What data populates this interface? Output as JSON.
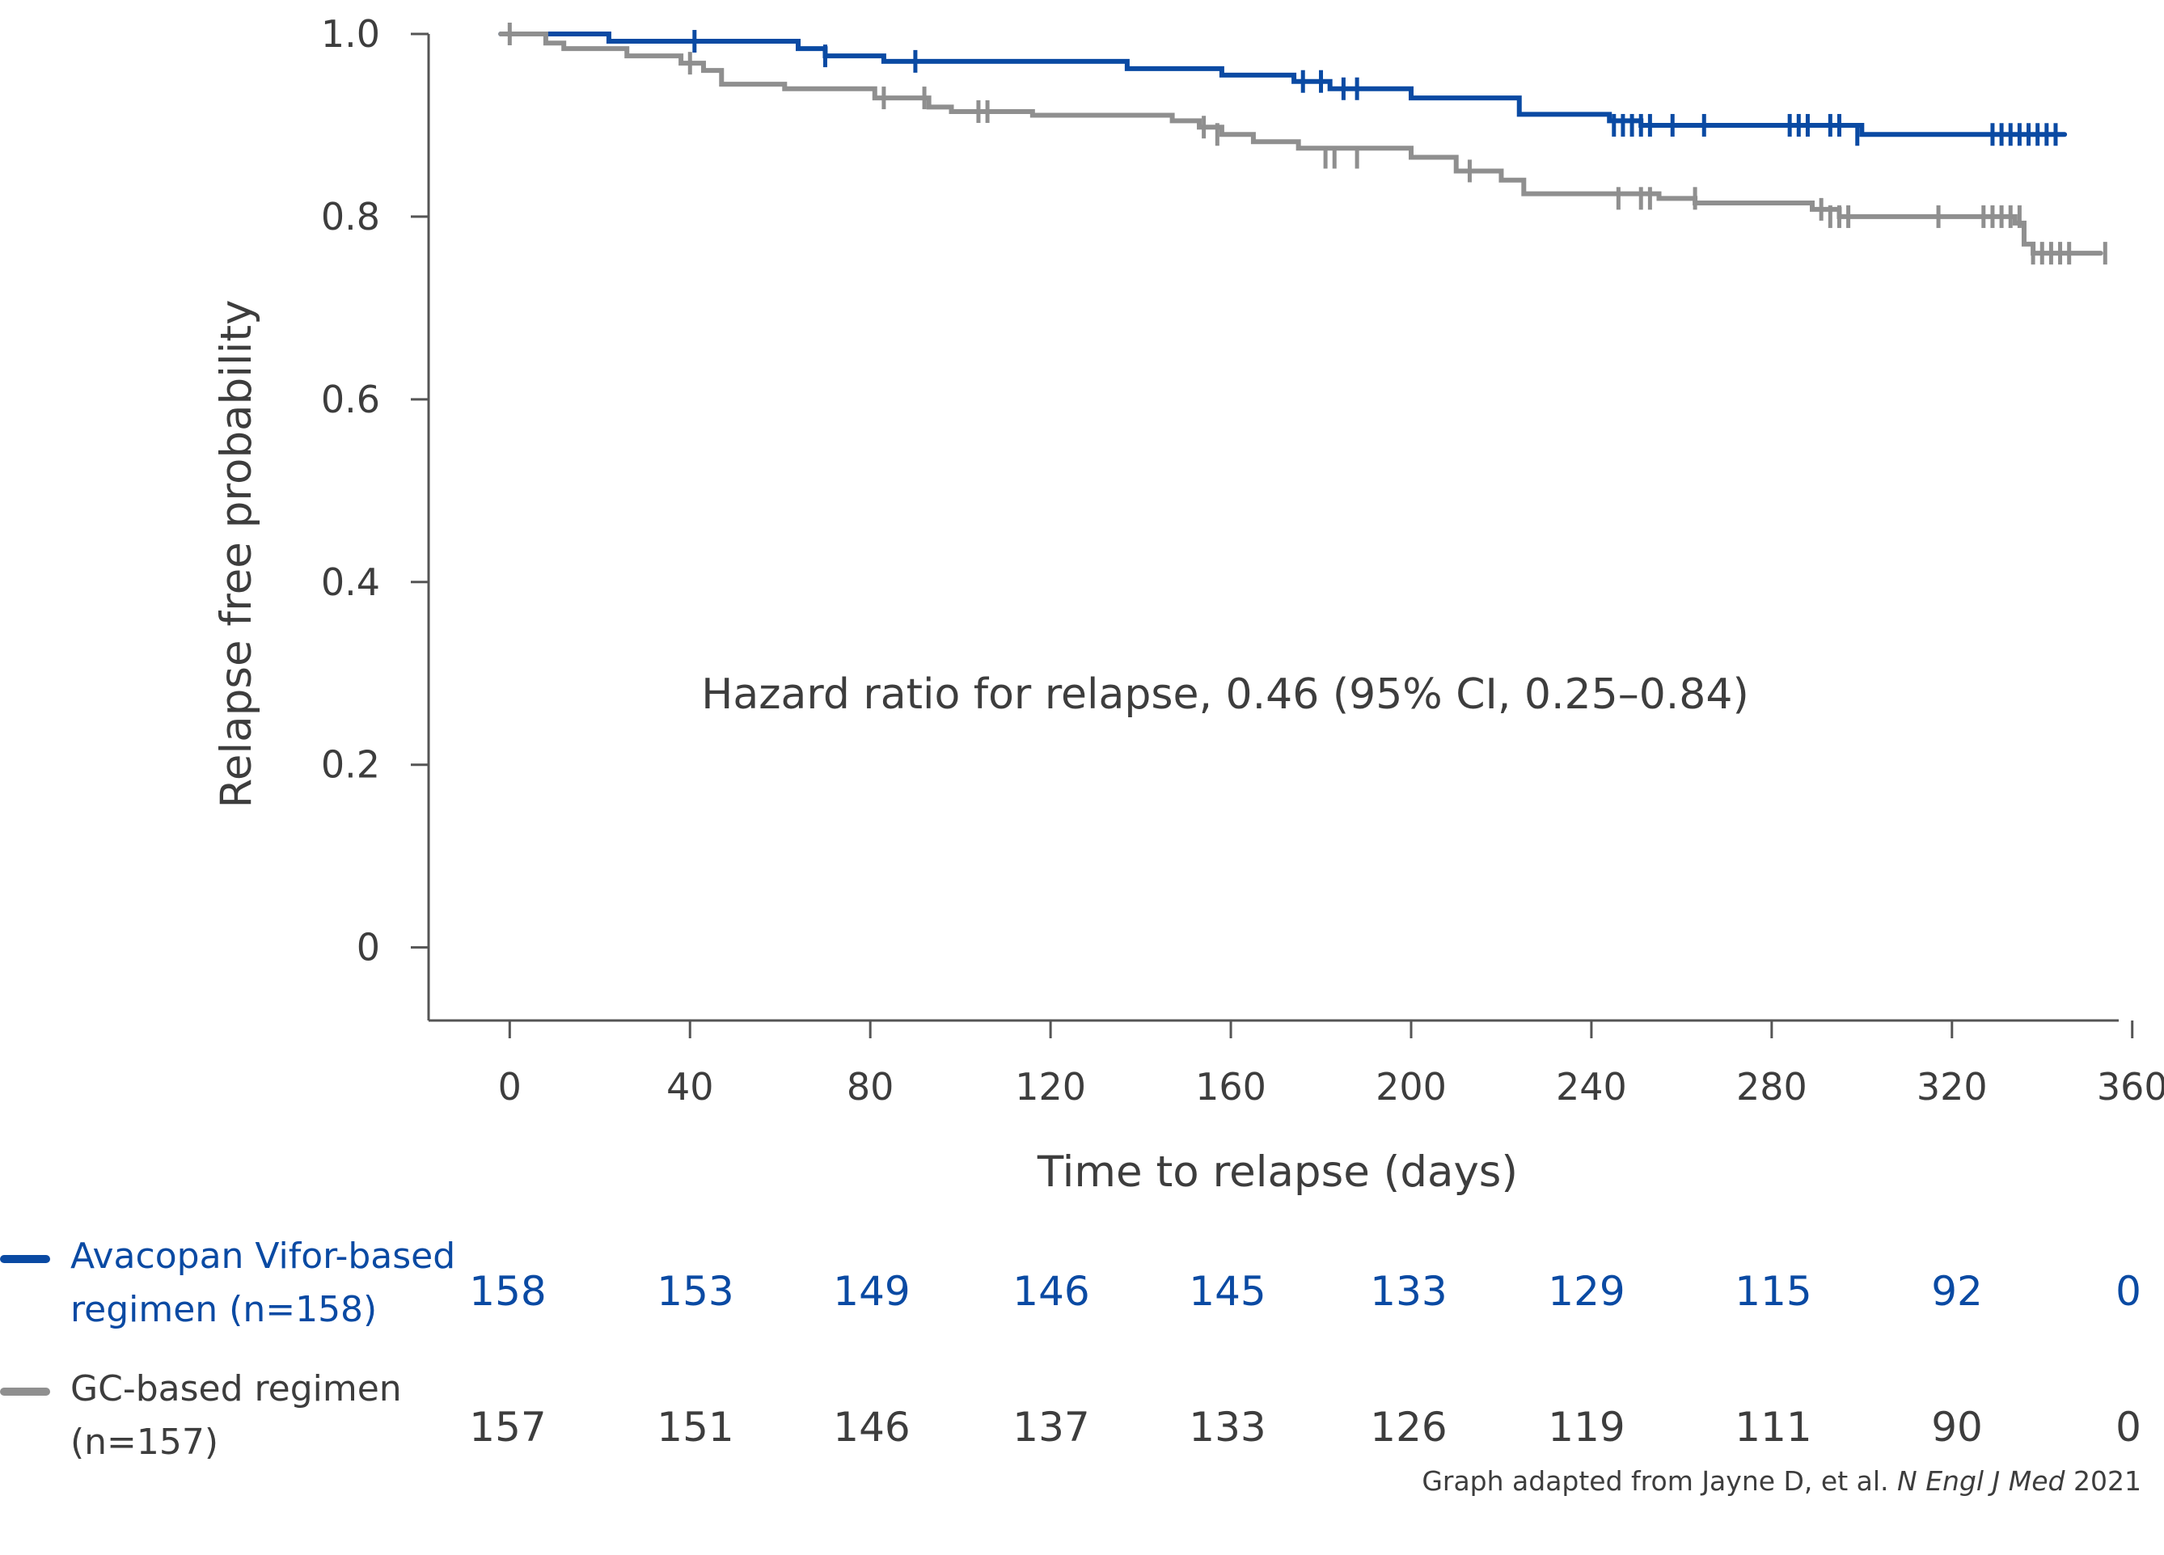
{
  "colors": {
    "avacopan": "#0a4aa3",
    "gc": "#8f8f8f",
    "axis": "#555555",
    "text": "#3d3d3d"
  },
  "chart_data": {
    "type": "line",
    "subtype": "kaplan-meier step",
    "xlabel": "Time to relapse (days)",
    "ylabel": "Relapse free probability",
    "xlim": [
      -18,
      357
    ],
    "ylim": [
      -0.08,
      1.0
    ],
    "x_ticks": [
      0,
      40,
      80,
      120,
      160,
      200,
      240,
      280,
      320,
      360
    ],
    "y_ticks": [
      0,
      0.2,
      0.4,
      0.6,
      0.8,
      1.0
    ],
    "y_tick_labels": [
      "0",
      "0.2",
      "0.4",
      "0.6",
      "0.8",
      "1.0"
    ],
    "annotation": "Hazard ratio for relapse, 0.46 (95% CI, 0.25–0.84)",
    "series": [
      {
        "name": "Avacopan Vifor-based regimen (n=158)",
        "color_key": "avacopan",
        "steps": [
          [
            -2,
            1.0
          ],
          [
            22,
            0.992
          ],
          [
            64,
            0.984
          ],
          [
            70,
            0.976
          ],
          [
            83,
            0.97
          ],
          [
            137,
            0.962
          ],
          [
            158,
            0.955
          ],
          [
            174,
            0.948
          ],
          [
            182,
            0.94
          ],
          [
            200,
            0.93
          ],
          [
            224,
            0.912
          ],
          [
            244,
            0.905
          ],
          [
            251,
            0.9
          ],
          [
            300,
            0.89
          ],
          [
            345,
            0.89
          ]
        ],
        "censored": [
          [
            41,
            0.992
          ],
          [
            70,
            0.976
          ],
          [
            90,
            0.97
          ],
          [
            176,
            0.948
          ],
          [
            180,
            0.948
          ],
          [
            185,
            0.94
          ],
          [
            188,
            0.94
          ],
          [
            245,
            0.9
          ],
          [
            247,
            0.9
          ],
          [
            249,
            0.9
          ],
          [
            251,
            0.9
          ],
          [
            253,
            0.9
          ],
          [
            258,
            0.9
          ],
          [
            265,
            0.9
          ],
          [
            284,
            0.9
          ],
          [
            286,
            0.9
          ],
          [
            288,
            0.9
          ],
          [
            293,
            0.9
          ],
          [
            295,
            0.9
          ],
          [
            299,
            0.89
          ],
          [
            329,
            0.89
          ],
          [
            331,
            0.89
          ],
          [
            333,
            0.89
          ],
          [
            335,
            0.89
          ],
          [
            337,
            0.89
          ],
          [
            339,
            0.89
          ],
          [
            341,
            0.89
          ],
          [
            343,
            0.89
          ]
        ]
      },
      {
        "name": "GC-based regimen (n=157)",
        "color_key": "gc",
        "steps": [
          [
            -2,
            1.0
          ],
          [
            8,
            0.99
          ],
          [
            12,
            0.984
          ],
          [
            26,
            0.976
          ],
          [
            38,
            0.968
          ],
          [
            43,
            0.96
          ],
          [
            47,
            0.945
          ],
          [
            61,
            0.94
          ],
          [
            81,
            0.93
          ],
          [
            93,
            0.92
          ],
          [
            98,
            0.915
          ],
          [
            116,
            0.911
          ],
          [
            147,
            0.905
          ],
          [
            153,
            0.898
          ],
          [
            158,
            0.89
          ],
          [
            165,
            0.882
          ],
          [
            175,
            0.875
          ],
          [
            200,
            0.865
          ],
          [
            210,
            0.85
          ],
          [
            220,
            0.84
          ],
          [
            225,
            0.825
          ],
          [
            255,
            0.82
          ],
          [
            263,
            0.815
          ],
          [
            289,
            0.808
          ],
          [
            295,
            0.8
          ],
          [
            334,
            0.793
          ],
          [
            336,
            0.77
          ],
          [
            338,
            0.76
          ],
          [
            353,
            0.76
          ]
        ],
        "censored": [
          [
            0,
            1.0
          ],
          [
            40,
            0.968
          ],
          [
            83,
            0.93
          ],
          [
            92,
            0.93
          ],
          [
            104,
            0.915
          ],
          [
            106,
            0.915
          ],
          [
            154,
            0.898
          ],
          [
            157,
            0.89
          ],
          [
            181,
            0.865
          ],
          [
            183,
            0.865
          ],
          [
            188,
            0.865
          ],
          [
            213,
            0.85
          ],
          [
            246,
            0.82
          ],
          [
            251,
            0.82
          ],
          [
            253,
            0.82
          ],
          [
            263,
            0.82
          ],
          [
            291,
            0.808
          ],
          [
            293,
            0.8
          ],
          [
            295,
            0.8
          ],
          [
            297,
            0.8
          ],
          [
            317,
            0.8
          ],
          [
            327,
            0.8
          ],
          [
            329,
            0.8
          ],
          [
            331,
            0.8
          ],
          [
            333,
            0.8
          ],
          [
            335,
            0.8
          ],
          [
            338,
            0.76
          ],
          [
            340,
            0.76
          ],
          [
            342,
            0.76
          ],
          [
            344,
            0.76
          ],
          [
            346,
            0.76
          ],
          [
            354,
            0.76
          ]
        ]
      }
    ]
  },
  "risk_table": {
    "times": [
      0,
      40,
      80,
      120,
      160,
      200,
      240,
      280,
      320,
      360
    ],
    "rows": [
      {
        "label_line1": "Avacopan Vifor-based",
        "label_line2": "regimen (n=158)",
        "values": [
          "158",
          "153",
          "149",
          "146",
          "145",
          "133",
          "129",
          "115",
          "92",
          "0"
        ]
      },
      {
        "label_line1": "GC-based regimen",
        "label_line2": "(n=157)",
        "values": [
          "157",
          "151",
          "146",
          "137",
          "133",
          "126",
          "119",
          "111",
          "90",
          "0"
        ]
      }
    ]
  },
  "footnote": {
    "prefix": "Graph adapted from Jayne D, et al. ",
    "journal": "N Engl J Med",
    "year": " 2021"
  }
}
